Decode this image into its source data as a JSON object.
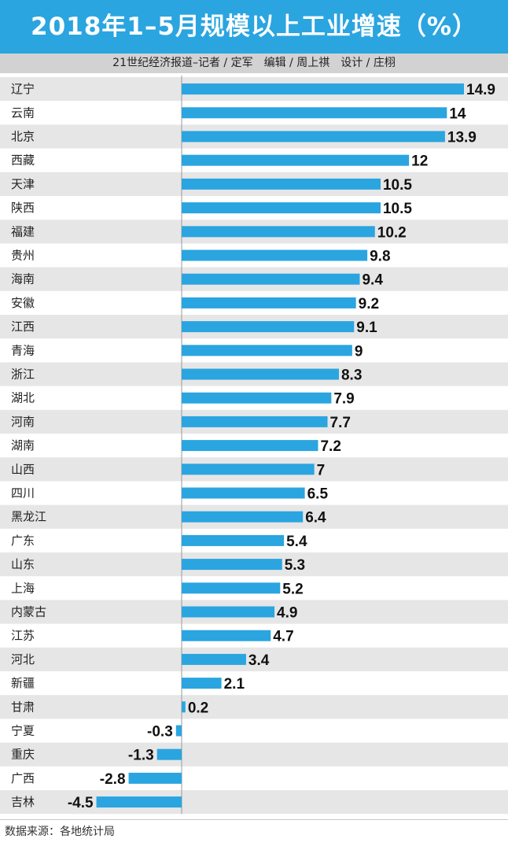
{
  "header": {
    "title": "2018年1–5月规模以上工业增速（%）",
    "credit": "21世纪经济报道–记者 / 定军　编辑 / 周上祺　设计 / 庄栩"
  },
  "footer": {
    "source": "数据来源：各地统计局"
  },
  "colors": {
    "title_bg": "#2aa5e0",
    "bar": "#2aa5e0",
    "row_alt": "#e6e6e6",
    "credit_bg": "#d2d2d2"
  },
  "chart_data": {
    "type": "bar",
    "orientation": "horizontal",
    "title": "2018年1–5月规模以上工业增速（%）",
    "unit": "%",
    "categories": [
      "辽宁",
      "云南",
      "北京",
      "西藏",
      "天津",
      "陕西",
      "福建",
      "贵州",
      "海南",
      "安徽",
      "江西",
      "青海",
      "浙江",
      "湖北",
      "河南",
      "湖南",
      "山西",
      "四川",
      "黑龙江",
      "广东",
      "山东",
      "上海",
      "内蒙古",
      "江苏",
      "河北",
      "新疆",
      "甘肃",
      "宁夏",
      "重庆",
      "广西",
      "吉林"
    ],
    "values": [
      14.9,
      14,
      13.9,
      12,
      10.5,
      10.5,
      10.2,
      9.8,
      9.4,
      9.2,
      9.1,
      9,
      8.3,
      7.9,
      7.7,
      7.2,
      7,
      6.5,
      6.4,
      5.4,
      5.3,
      5.2,
      4.9,
      4.7,
      3.4,
      2.1,
      0.2,
      -0.3,
      -1.3,
      -2.8,
      -4.5
    ],
    "value_labels": [
      "14.9",
      "14",
      "13.9",
      "12",
      "10.5",
      "10.5",
      "10.2",
      "9.8",
      "9.4",
      "9.2",
      "9.1",
      "9",
      "8.3",
      "7.9",
      "7.7",
      "7.2",
      "7",
      "6.5",
      "6.4",
      "5.4",
      "5.3",
      "5.2",
      "4.9",
      "4.7",
      "3.4",
      "2.1",
      "0.2",
      "-0.3",
      "-1.3",
      "-2.8",
      "-4.5"
    ],
    "xlim": [
      -4.5,
      14.9
    ],
    "grid": false,
    "legend": "none"
  }
}
